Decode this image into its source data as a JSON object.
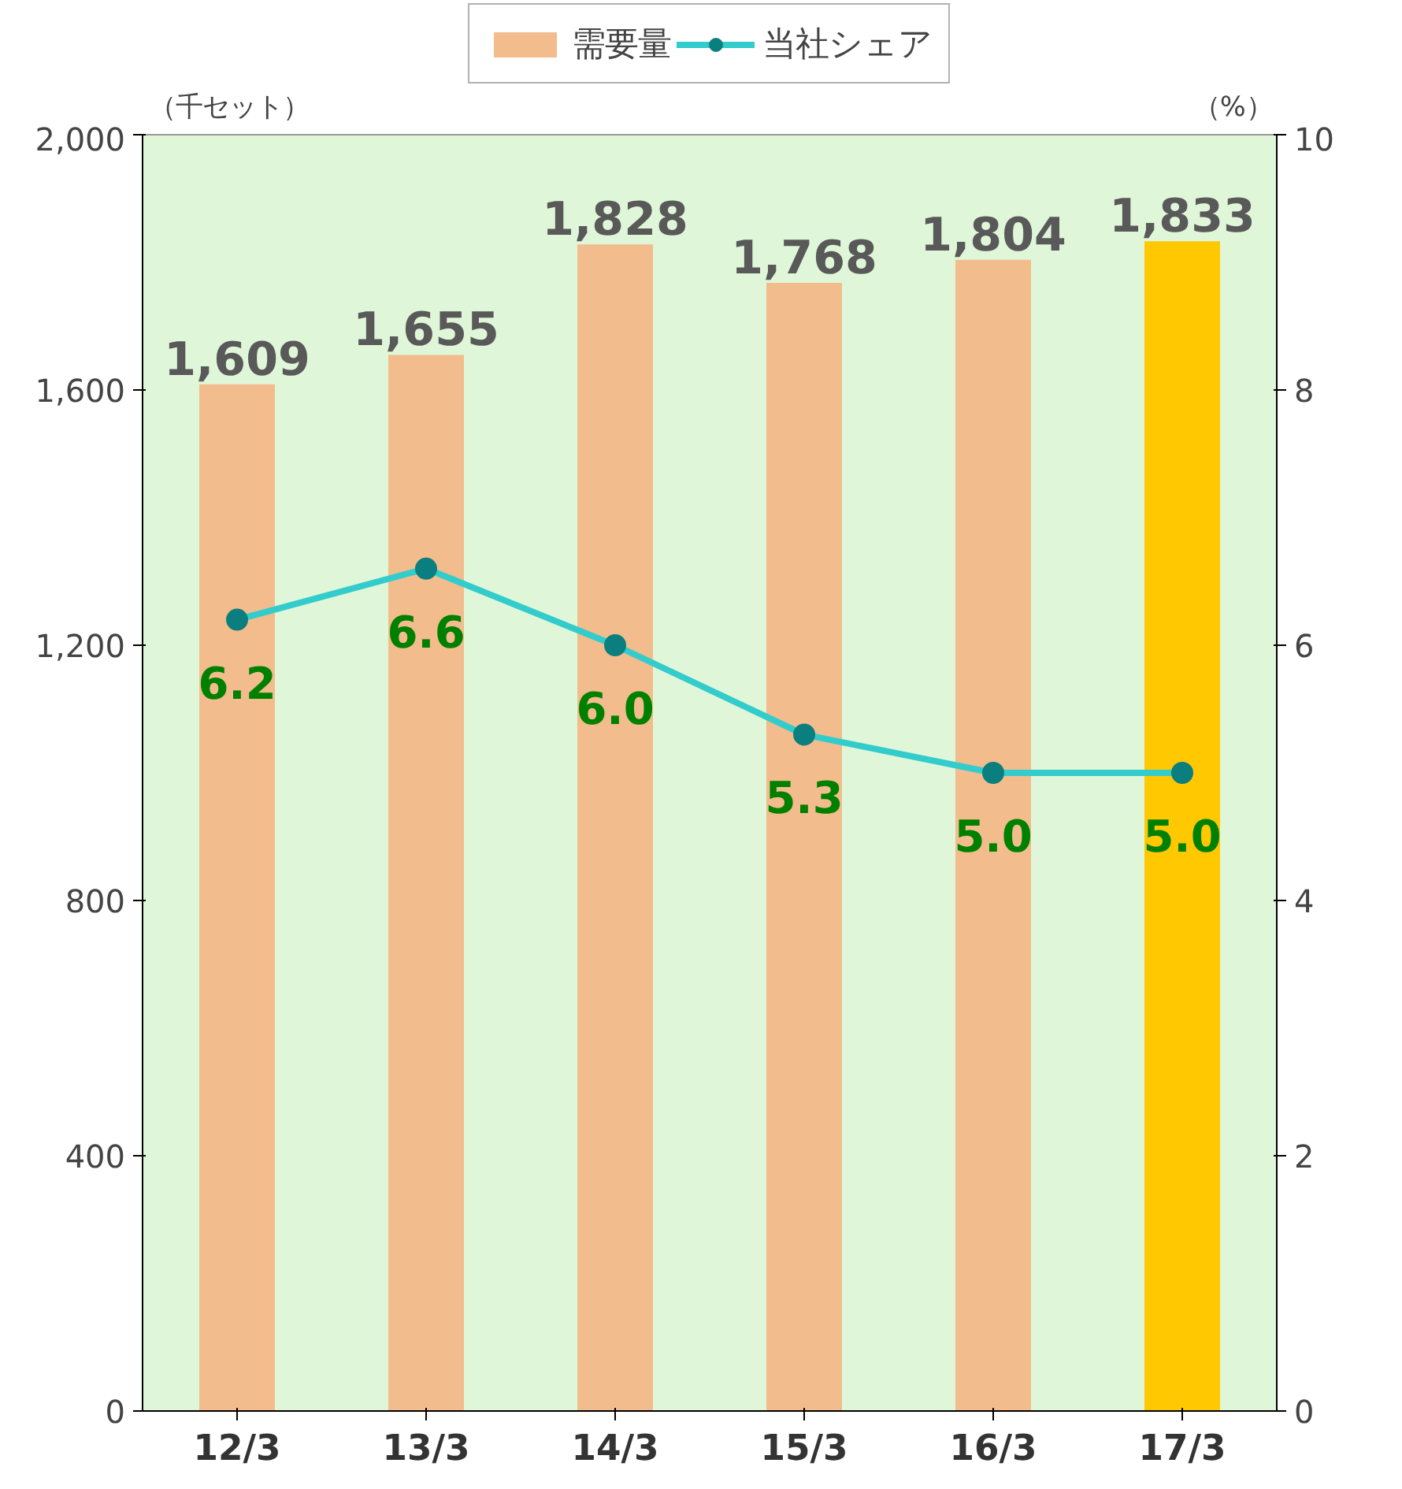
{
  "chart_data": {
    "type": "bar",
    "categories": [
      "12/3",
      "13/3",
      "14/3",
      "15/3",
      "16/3",
      "17/3"
    ],
    "ylabel": "（千セット）",
    "y2label": "（%）",
    "ylim": [
      0,
      2000
    ],
    "yticks": [
      0,
      {
        "value": 400,
        "label": "400"
      },
      {
        "value": 800,
        "label": "800"
      },
      {
        "value": 1200,
        "label": "1,200"
      },
      {
        "value": 1600,
        "label": "1,600"
      },
      {
        "value": 2000,
        "label": "2,000"
      }
    ],
    "y2lim": [
      0,
      10
    ],
    "y2ticks": [
      0,
      2,
      4,
      6,
      8,
      10
    ],
    "legend": "top",
    "grid": false,
    "series": [
      {
        "name": "需要量",
        "color": "#f2bc8c",
        "colors": [
          "#f2bc8c",
          "#f2bc8c",
          "#f2bc8c",
          "#f2bc8c",
          "#f2bc8c",
          "#ffc800"
        ],
        "values": [
          1609,
          1655,
          1828,
          1768,
          1804,
          1833
        ],
        "value_labels": [
          "1,609",
          "1,655",
          "1,828",
          "1,768",
          "1,804",
          "1,833"
        ]
      },
      {
        "name": "当社シェア",
        "type": "line",
        "axis": "y2",
        "color": "#33cccc",
        "marker": "circle",
        "values": [
          6.2,
          6.6,
          6.0,
          5.3,
          5.0,
          5.0
        ],
        "value_labels": [
          "6.2",
          "6.6",
          "6.0",
          "5.3",
          "5.0",
          "5.0"
        ]
      }
    ]
  }
}
